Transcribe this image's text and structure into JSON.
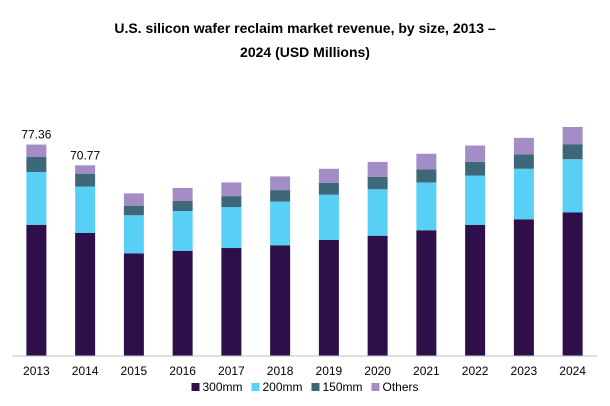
{
  "chart_data": {
    "type": "bar",
    "stacked": true,
    "title_line1": "U.S. silicon wafer reclaim market revenue, by size, 2013 –",
    "title_line2": "2024 (USD Millions)",
    "categories": [
      "2013",
      "2014",
      "2015",
      "2016",
      "2017",
      "2018",
      "2019",
      "2020",
      "2021",
      "2022",
      "2023",
      "2024"
    ],
    "series": [
      {
        "name": "300mm",
        "color": "#2e0f4a",
        "values": [
          48.0,
          45.0,
          37.5,
          38.5,
          39.5,
          40.5,
          42.5,
          44.0,
          46.0,
          48.0,
          50.0,
          52.5
        ]
      },
      {
        "name": "200mm",
        "color": "#58cff4",
        "values": [
          19.3,
          17.0,
          14.0,
          14.5,
          15.0,
          16.0,
          16.5,
          17.0,
          17.5,
          18.0,
          18.5,
          19.5
        ]
      },
      {
        "name": "150mm",
        "color": "#3e6878",
        "values": [
          5.5,
          4.7,
          3.5,
          3.7,
          4.0,
          4.2,
          4.3,
          4.5,
          4.8,
          5.0,
          5.3,
          5.5
        ]
      },
      {
        "name": "Others",
        "color": "#a48dc6",
        "values": [
          4.56,
          3.07,
          4.5,
          4.8,
          5.0,
          5.0,
          5.2,
          5.5,
          5.7,
          6.0,
          6.0,
          6.3
        ]
      }
    ],
    "data_labels": [
      {
        "category": "2013",
        "text": "77.36"
      },
      {
        "category": "2014",
        "text": "70.77"
      }
    ],
    "xlabel": "",
    "ylabel": "",
    "ylim": [
      0,
      90
    ],
    "grid": false,
    "legend_position": "bottom"
  }
}
